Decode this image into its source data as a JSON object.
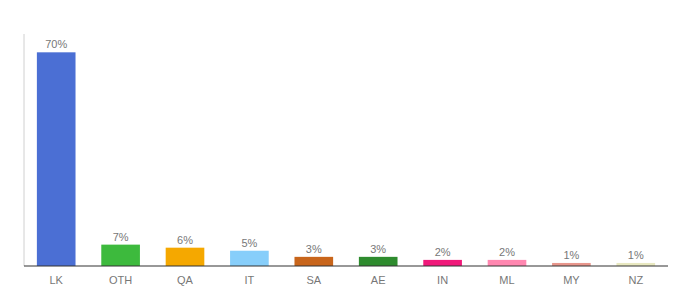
{
  "chart_data": {
    "type": "bar",
    "categories": [
      "LK",
      "OTH",
      "QA",
      "IT",
      "SA",
      "AE",
      "IN",
      "ML",
      "MY",
      "NZ"
    ],
    "values": [
      70,
      7,
      6,
      5,
      3,
      3,
      2,
      2,
      1,
      1
    ],
    "value_labels": [
      "70%",
      "7%",
      "6%",
      "5%",
      "3%",
      "3%",
      "2%",
      "2%",
      "1%",
      "1%"
    ],
    "colors": [
      "#4b6fd4",
      "#3dba3d",
      "#f5a800",
      "#87cefa",
      "#c8651b",
      "#2e8b2e",
      "#f0197a",
      "#ff87b0",
      "#e8968c",
      "#e8e8c0"
    ],
    "ylim": [
      0,
      76
    ],
    "data_labels": true,
    "tick_labels": "x",
    "grid": false
  }
}
